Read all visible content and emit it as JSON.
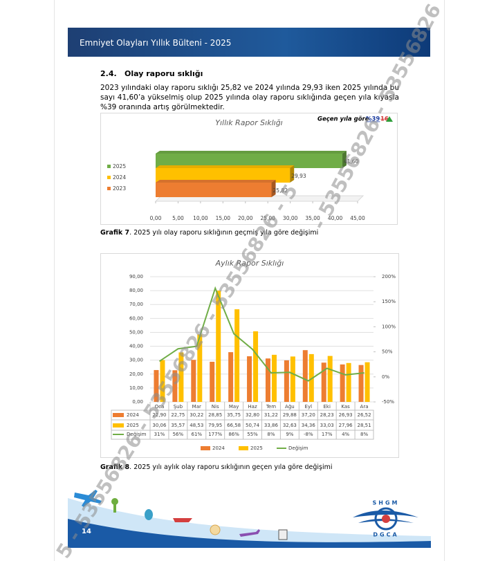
{
  "header": {
    "title": "Emniyet Olayları Yıllık Bülteni - 2025"
  },
  "section": {
    "number": "2.4.",
    "title": "Olay raporu sıklığı"
  },
  "paragraph": "2023 yılındaki olay raporu sıklığı 25,82 ve 2024 yılında 29,93 iken 2025 yılında bu sayı 41,60’a yükselmiş olup 2025 yılında olay raporu sıklığında geçen yıla kıyasla %39 oranında artış görülmektedir.",
  "chart_data": [
    {
      "type": "hbar",
      "title": "Yıllık Rapor Sıklığı",
      "annotation": {
        "text": "Geçen yıla göre",
        "new": "%39",
        "old": "16"
      },
      "categories": [
        "2025",
        "2024",
        "2023"
      ],
      "values": [
        41.6,
        29.93,
        25.82
      ],
      "value_labels": [
        "41,60",
        "29,93",
        "25,82"
      ],
      "colors": [
        "#70ad47",
        "#ffc000",
        "#ed7d31"
      ],
      "xlim": [
        0,
        45
      ],
      "xticks": [
        {
          "value": 0,
          "label": "0,00"
        },
        {
          "value": 5,
          "label": "5,00"
        },
        {
          "value": 10,
          "label": "10,00"
        },
        {
          "value": 15,
          "label": "15,00"
        },
        {
          "value": 20,
          "label": "20,00"
        },
        {
          "value": 25,
          "label": "25,00"
        },
        {
          "value": 30,
          "label": "30,00"
        },
        {
          "value": 35,
          "label": "35,00"
        },
        {
          "value": 40,
          "label": "40,00"
        },
        {
          "value": 45,
          "label": "45,00"
        }
      ]
    },
    {
      "type": "bar-line",
      "title": "Aylık Rapor Sıklığı",
      "categories": [
        "Oca",
        "Şub",
        "Mar",
        "Nis",
        "May",
        "Haz",
        "Tem",
        "Ağu",
        "Eyl",
        "Eki",
        "Kas",
        "Ara"
      ],
      "series": [
        {
          "name": "2024",
          "color": "#ed7d31",
          "values": [
            22.9,
            22.75,
            30.22,
            28.85,
            35.75,
            32.8,
            31.22,
            29.88,
            37.2,
            28.23,
            26.93,
            26.52
          ],
          "value_labels": [
            "22,90",
            "22,75",
            "30,22",
            "28,85",
            "35,75",
            "32,80",
            "31,22",
            "29,88",
            "37,20",
            "28,23",
            "26,93",
            "26,52"
          ]
        },
        {
          "name": "2025",
          "color": "#ffc000",
          "values": [
            30.06,
            35.57,
            48.53,
            79.95,
            66.58,
            50.74,
            33.86,
            32.63,
            34.36,
            33.03,
            27.96,
            28.51
          ],
          "value_labels": [
            "30,06",
            "35,57",
            "48,53",
            "79,95",
            "66,58",
            "50,74",
            "33,86",
            "32,63",
            "34,36",
            "33,03",
            "27,96",
            "28,51"
          ]
        },
        {
          "name": "Değişim",
          "color": "#70ad47",
          "axis": "y2",
          "values": [
            31,
            56,
            61,
            177,
            86,
            55,
            8,
            9,
            -8,
            17,
            4,
            8
          ],
          "value_labels": [
            "31%",
            "56%",
            "61%",
            "177%",
            "86%",
            "55%",
            "8%",
            "9%",
            "-8%",
            "17%",
            "4%",
            "8%"
          ]
        }
      ],
      "ylim": [
        0,
        90
      ],
      "yticks": [
        {
          "value": 0,
          "label": "0,00"
        },
        {
          "value": 10,
          "label": "10,00"
        },
        {
          "value": 20,
          "label": "20,00"
        },
        {
          "value": 30,
          "label": "30,00"
        },
        {
          "value": 40,
          "label": "40,00"
        },
        {
          "value": 50,
          "label": "50,00"
        },
        {
          "value": 60,
          "label": "60,00"
        },
        {
          "value": 70,
          "label": "70,00"
        },
        {
          "value": 80,
          "label": "80,00"
        },
        {
          "value": 90,
          "label": "90,00"
        }
      ],
      "y2lim": [
        -50,
        200
      ],
      "y2ticks": [
        {
          "value": -50,
          "label": "-50%"
        },
        {
          "value": 0,
          "label": "0%"
        },
        {
          "value": 50,
          "label": "50%"
        },
        {
          "value": 100,
          "label": "100%"
        },
        {
          "value": 150,
          "label": "150%"
        },
        {
          "value": 200,
          "label": "200%"
        }
      ],
      "grid": true
    }
  ],
  "captions": [
    {
      "label": "Grafik 7",
      "text": ". 2025 yılı olay raporu sıklığının geçmiş yıla göre değişimi"
    },
    {
      "label": "Grafik 8",
      "text": ". 2025 yılı aylık olay raporu sıklığının geçen yıla göre değişimi"
    }
  ],
  "footer": {
    "page": "14",
    "logo_top": "SHGM",
    "logo_bottom": "DGCA"
  },
  "watermark": [
    "- 53556826 - 53556826 - 5",
    "5 - 53556826 - 53556826 - 53556826 - 5"
  ]
}
